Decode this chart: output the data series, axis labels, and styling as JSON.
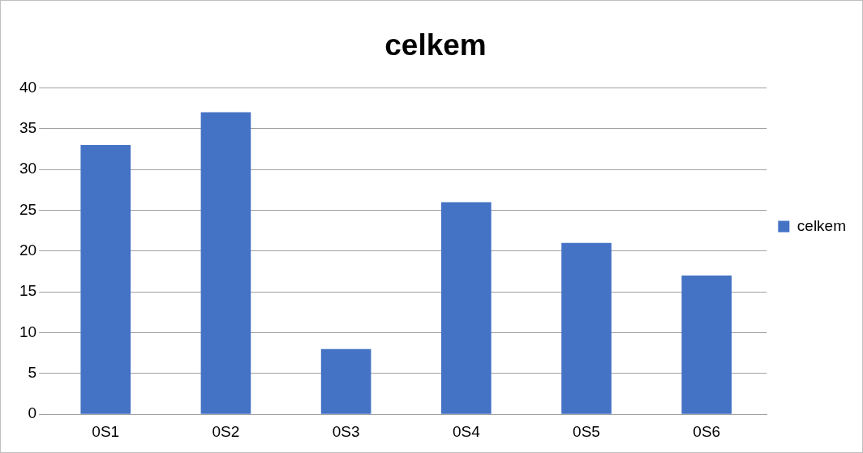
{
  "chart_data": {
    "type": "bar",
    "title": "celkem",
    "categories": [
      "0S1",
      "0S2",
      "0S3",
      "0S4",
      "0S5",
      "0S6"
    ],
    "series": [
      {
        "name": "celkem",
        "color": "#4472c4",
        "values": [
          33,
          37,
          8,
          26,
          21,
          17
        ]
      }
    ],
    "ylim": [
      0,
      40
    ],
    "yticks": [
      0,
      5,
      10,
      15,
      20,
      25,
      30,
      35,
      40
    ],
    "grid": "y",
    "legend": "right"
  }
}
